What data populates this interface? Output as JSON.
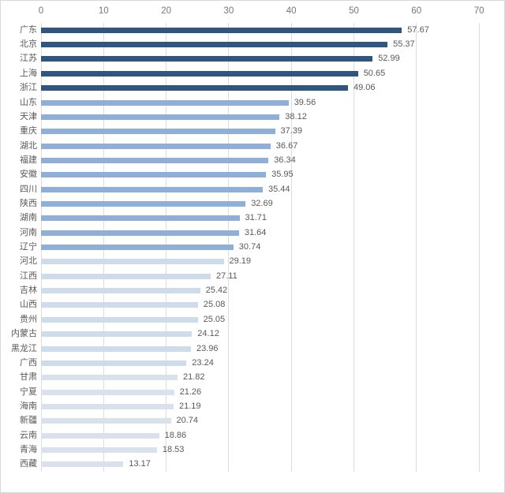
{
  "page": {
    "background": "#ffffff",
    "border_color": "#d8d8d8"
  },
  "style": {
    "grid_color": "#dddddd",
    "tick_color": "#767676",
    "category_label_color": "#595959",
    "value_label_color": "#595959",
    "tier_colors": {
      "dark": "#305680",
      "medium": "#8FAFD8",
      "light": "#CDDBEB",
      "lightest": "#D9E2EC"
    }
  },
  "chart_data": {
    "type": "bar",
    "orientation": "horizontal",
    "title": "",
    "xlabel": "",
    "ylabel": "",
    "xlim": [
      0,
      70
    ],
    "x_ticks": [
      0,
      10,
      20,
      30,
      40,
      50,
      60,
      70
    ],
    "grid": true,
    "legend": false,
    "value_label_decimals": 2,
    "categories": [
      "广东",
      "北京",
      "江苏",
      "上海",
      "浙江",
      "山东",
      "天津",
      "重庆",
      "湖北",
      "福建",
      "安徽",
      "四川",
      "陕西",
      "湖南",
      "河南",
      "辽宁",
      "河北",
      "江西",
      "吉林",
      "山西",
      "贵州",
      "内蒙古",
      "黑龙江",
      "广西",
      "甘肃",
      "宁夏",
      "海南",
      "新疆",
      "云南",
      "青海",
      "西藏"
    ],
    "values": [
      57.67,
      55.37,
      52.99,
      50.65,
      49.06,
      39.56,
      38.12,
      37.39,
      36.67,
      36.34,
      35.95,
      35.44,
      32.69,
      31.71,
      31.64,
      30.74,
      29.19,
      27.11,
      25.42,
      25.08,
      25.05,
      24.12,
      23.96,
      23.24,
      21.82,
      21.26,
      21.19,
      20.74,
      18.86,
      18.53,
      13.17
    ],
    "bar_colors": [
      "#305680",
      "#305680",
      "#305680",
      "#305680",
      "#305680",
      "#8FAFD8",
      "#8FAFD8",
      "#8FAFD8",
      "#8FAFD8",
      "#8FAFD8",
      "#8FAFD8",
      "#8FAFD8",
      "#8FAFD8",
      "#8FAFD8",
      "#8FAFD8",
      "#8FAFD8",
      "#CDDBEB",
      "#CDDBEB",
      "#CDDBEB",
      "#CDDBEB",
      "#CDDBEB",
      "#CDDBEB",
      "#CDDBEB",
      "#CDDBEB",
      "#D9E2EC",
      "#D9E2EC",
      "#D9E2EC",
      "#D9E2EC",
      "#D9E2EC",
      "#D9E2EC",
      "#D9E2EC"
    ]
  }
}
